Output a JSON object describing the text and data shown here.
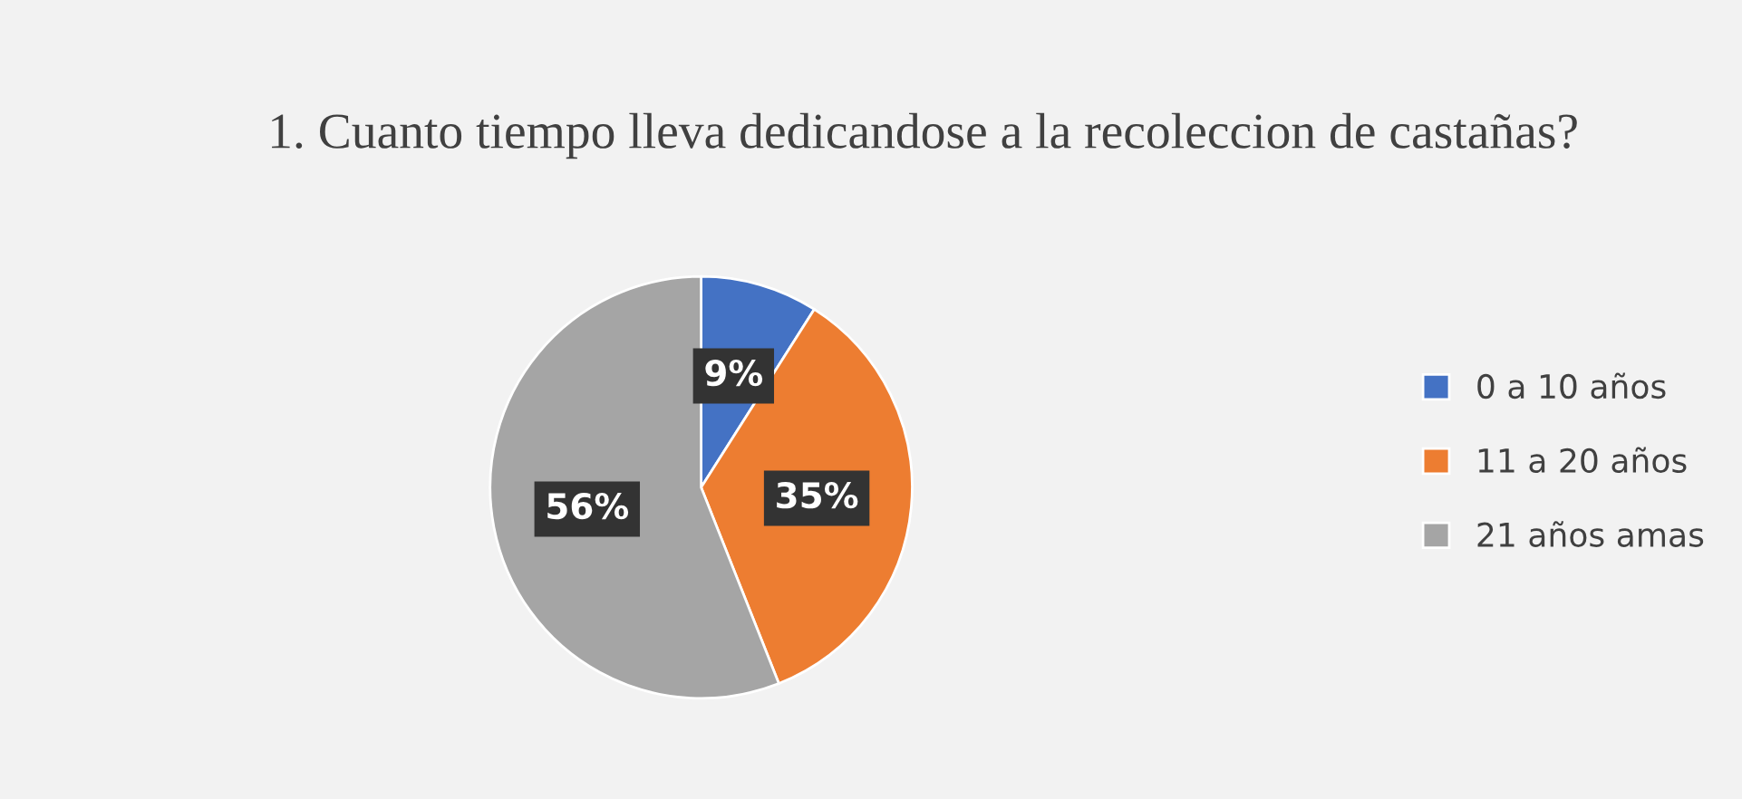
{
  "chart_data": {
    "type": "pie",
    "title": "1. Cuanto tiempo lleva dedicandose a la recoleccion de castañas?",
    "categories": [
      "0 a 10 años",
      "11 a 20 años",
      "21 años amas"
    ],
    "values": [
      9,
      35,
      56
    ],
    "colors": [
      "#4472c4",
      "#ed7d31",
      "#a5a5a5"
    ],
    "value_labels": [
      "9%",
      "35%",
      "56%"
    ],
    "legend": "right"
  }
}
